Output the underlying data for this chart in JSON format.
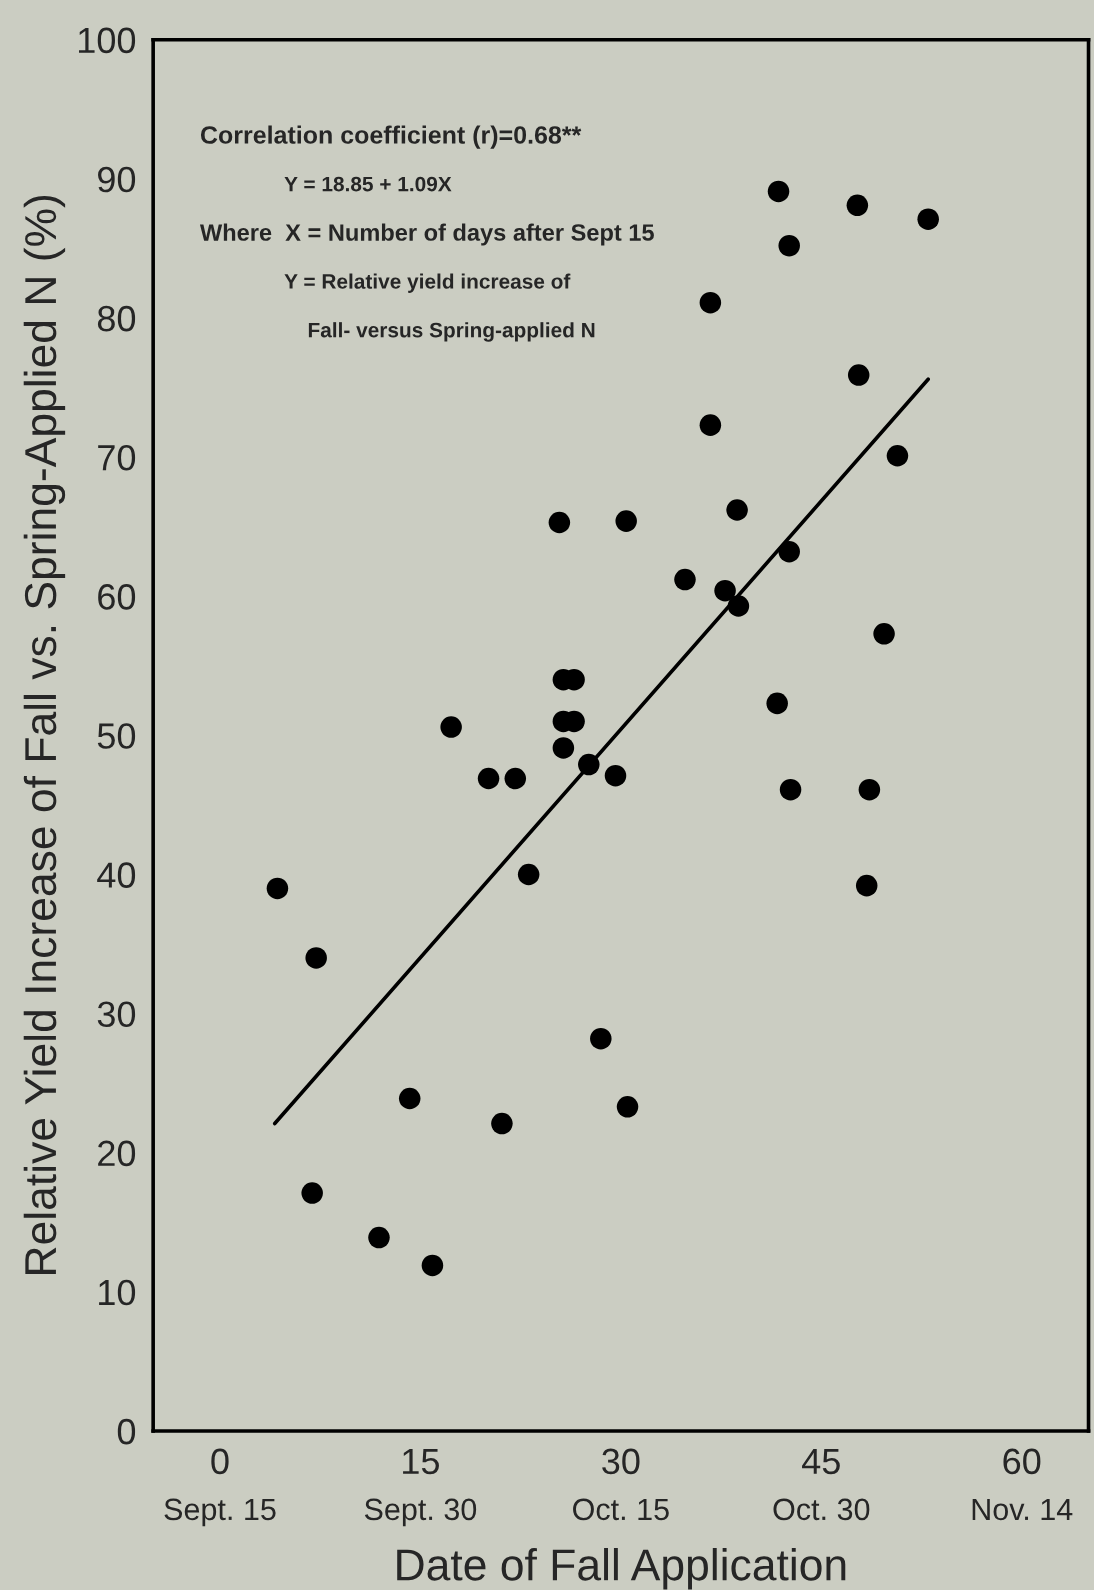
{
  "chart_data": {
    "type": "scatter",
    "xlabel": "Date of Fall Application",
    "ylabel": "Relative Yield Increase of Fall vs. Spring-Applied N (%)",
    "xlim": [
      -5,
      65
    ],
    "ylim": [
      0,
      100
    ],
    "xticks": [
      0,
      15,
      30,
      45,
      60
    ],
    "yticks": [
      0,
      10,
      20,
      30,
      40,
      50,
      60,
      70,
      80,
      90,
      100
    ],
    "grid": false,
    "legend": false,
    "annotations": [
      "Correlation coefficient (r)=0.68**",
      "Y = 18.85 + 1.09X",
      "Where  X = Number of days after Sept 15",
      "Y = Relative yield increase of",
      "Fall- versus Spring-applied N",
      "Sept. 15",
      "Sept. 30",
      "Oct. 15",
      "Oct. 30",
      "Nov. 14"
    ],
    "series": [
      {
        "color": "#000000",
        "marker": "circle",
        "x": [
          41.8,
          47.7,
          53.0,
          42.6,
          36.7,
          47.8,
          36.7,
          50.7,
          38.7,
          25.4,
          30.4,
          42.6,
          34.8,
          37.8,
          38.8,
          49.7,
          41.7,
          25.7,
          26.5,
          25.7,
          26.5,
          25.7,
          17.3,
          20.1,
          22.1,
          27.6,
          29.6,
          42.7,
          48.6,
          23.1,
          48.4,
          4.3,
          7.2,
          28.5,
          14.2,
          21.1,
          30.5,
          6.9,
          11.9,
          15.9
        ],
        "values": [
          89.1,
          88.1,
          87.1,
          85.2,
          81.1,
          75.9,
          72.3,
          70.1,
          66.2,
          65.3,
          65.4,
          63.2,
          61.2,
          60.4,
          59.3,
          57.3,
          52.3,
          54.0,
          54.0,
          51.0,
          51.0,
          49.1,
          50.6,
          46.9,
          46.9,
          47.9,
          47.1,
          46.1,
          46.1,
          40.0,
          39.2,
          39.0,
          34.0,
          28.2,
          23.9,
          22.1,
          23.3,
          17.1,
          13.9,
          11.9
        ]
      },
      {
        "type": "line",
        "color": "#000000",
        "x": [
          4.1,
          53.0
        ],
        "values": [
          22.1,
          75.6
        ],
        "line_style": "solid",
        "marker": "none"
      }
    ]
  }
}
